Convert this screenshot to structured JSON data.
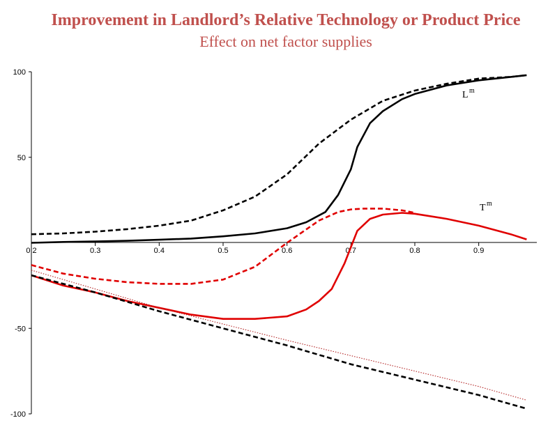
{
  "title": "Improvement in Landlord’s Relative Technology or Product Price",
  "subtitle": "Effect on net factor supplies",
  "chart_data": {
    "type": "line",
    "x_ticks": [
      0.2,
      0.3,
      0.4,
      0.5,
      0.6,
      0.7,
      0.8,
      0.9
    ],
    "y_ticks": [
      100,
      50,
      -50,
      -100
    ],
    "xlim": [
      0.2,
      0.98
    ],
    "ylim": [
      -100,
      100
    ],
    "grid": false,
    "series": [
      {
        "name": "Lm",
        "label_main": "L",
        "label_sup": "m",
        "color": "#000000",
        "dash": "solid",
        "x": [
          0.2,
          0.25,
          0.3,
          0.35,
          0.4,
          0.45,
          0.5,
          0.55,
          0.6,
          0.63,
          0.66,
          0.68,
          0.7,
          0.71,
          0.73,
          0.75,
          0.78,
          0.8,
          0.85,
          0.9,
          0.95,
          0.975
        ],
        "y": [
          0,
          0.5,
          0.8,
          1.2,
          1.8,
          2.5,
          3.8,
          5.5,
          8.5,
          12,
          18,
          28,
          43,
          56,
          70,
          77,
          84,
          87,
          92,
          95,
          97,
          98
        ]
      },
      {
        "name": "Lm-dashed",
        "color": "#000000",
        "dash": "dashed",
        "x": [
          0.2,
          0.25,
          0.3,
          0.35,
          0.4,
          0.45,
          0.5,
          0.55,
          0.6,
          0.65,
          0.7,
          0.75,
          0.8,
          0.85,
          0.9,
          0.95,
          0.975
        ],
        "y": [
          5,
          5.5,
          6.5,
          8,
          10,
          13,
          19,
          27,
          40,
          58,
          72,
          83,
          89,
          93,
          96,
          97,
          98
        ]
      },
      {
        "name": "Tm",
        "label_main": "T",
        "label_sup": "m",
        "color": "#e00000",
        "dash": "solid",
        "x": [
          0.2,
          0.25,
          0.3,
          0.35,
          0.4,
          0.45,
          0.5,
          0.55,
          0.6,
          0.63,
          0.65,
          0.67,
          0.69,
          0.71,
          0.73,
          0.75,
          0.78,
          0.8,
          0.85,
          0.9,
          0.95,
          0.975
        ],
        "y": [
          -19,
          -25,
          -29,
          -34,
          -38,
          -42,
          -44.5,
          -44.5,
          -43,
          -39,
          -34,
          -27,
          -12,
          7,
          14,
          16.5,
          17.5,
          17,
          14,
          10,
          5,
          2
        ]
      },
      {
        "name": "Tm-dashed",
        "color": "#e00000",
        "dash": "dashed",
        "x": [
          0.2,
          0.25,
          0.3,
          0.35,
          0.4,
          0.45,
          0.5,
          0.55,
          0.6,
          0.65,
          0.68,
          0.7,
          0.72,
          0.75,
          0.78,
          0.8
        ],
        "y": [
          -13,
          -18,
          -21,
          -23,
          -24,
          -24,
          -21.5,
          -14,
          0,
          13,
          18,
          19.5,
          20,
          20,
          19,
          17.5
        ]
      },
      {
        "name": "black-dashed-lower",
        "color": "#000000",
        "dash": "dashed",
        "x": [
          0.2,
          0.3,
          0.4,
          0.5,
          0.6,
          0.7,
          0.8,
          0.9,
          0.975
        ],
        "y": [
          -19,
          -29,
          -40,
          -50,
          -60,
          -71,
          -80,
          -89,
          -97
        ]
      },
      {
        "name": "red-dotted-lower",
        "color": "#b22222",
        "dash": "dotted",
        "x": [
          0.2,
          0.3,
          0.4,
          0.5,
          0.6,
          0.7,
          0.8,
          0.9,
          0.975
        ],
        "y": [
          -16,
          -27,
          -38,
          -47.5,
          -57,
          -66,
          -75,
          -84,
          -92
        ]
      }
    ]
  }
}
